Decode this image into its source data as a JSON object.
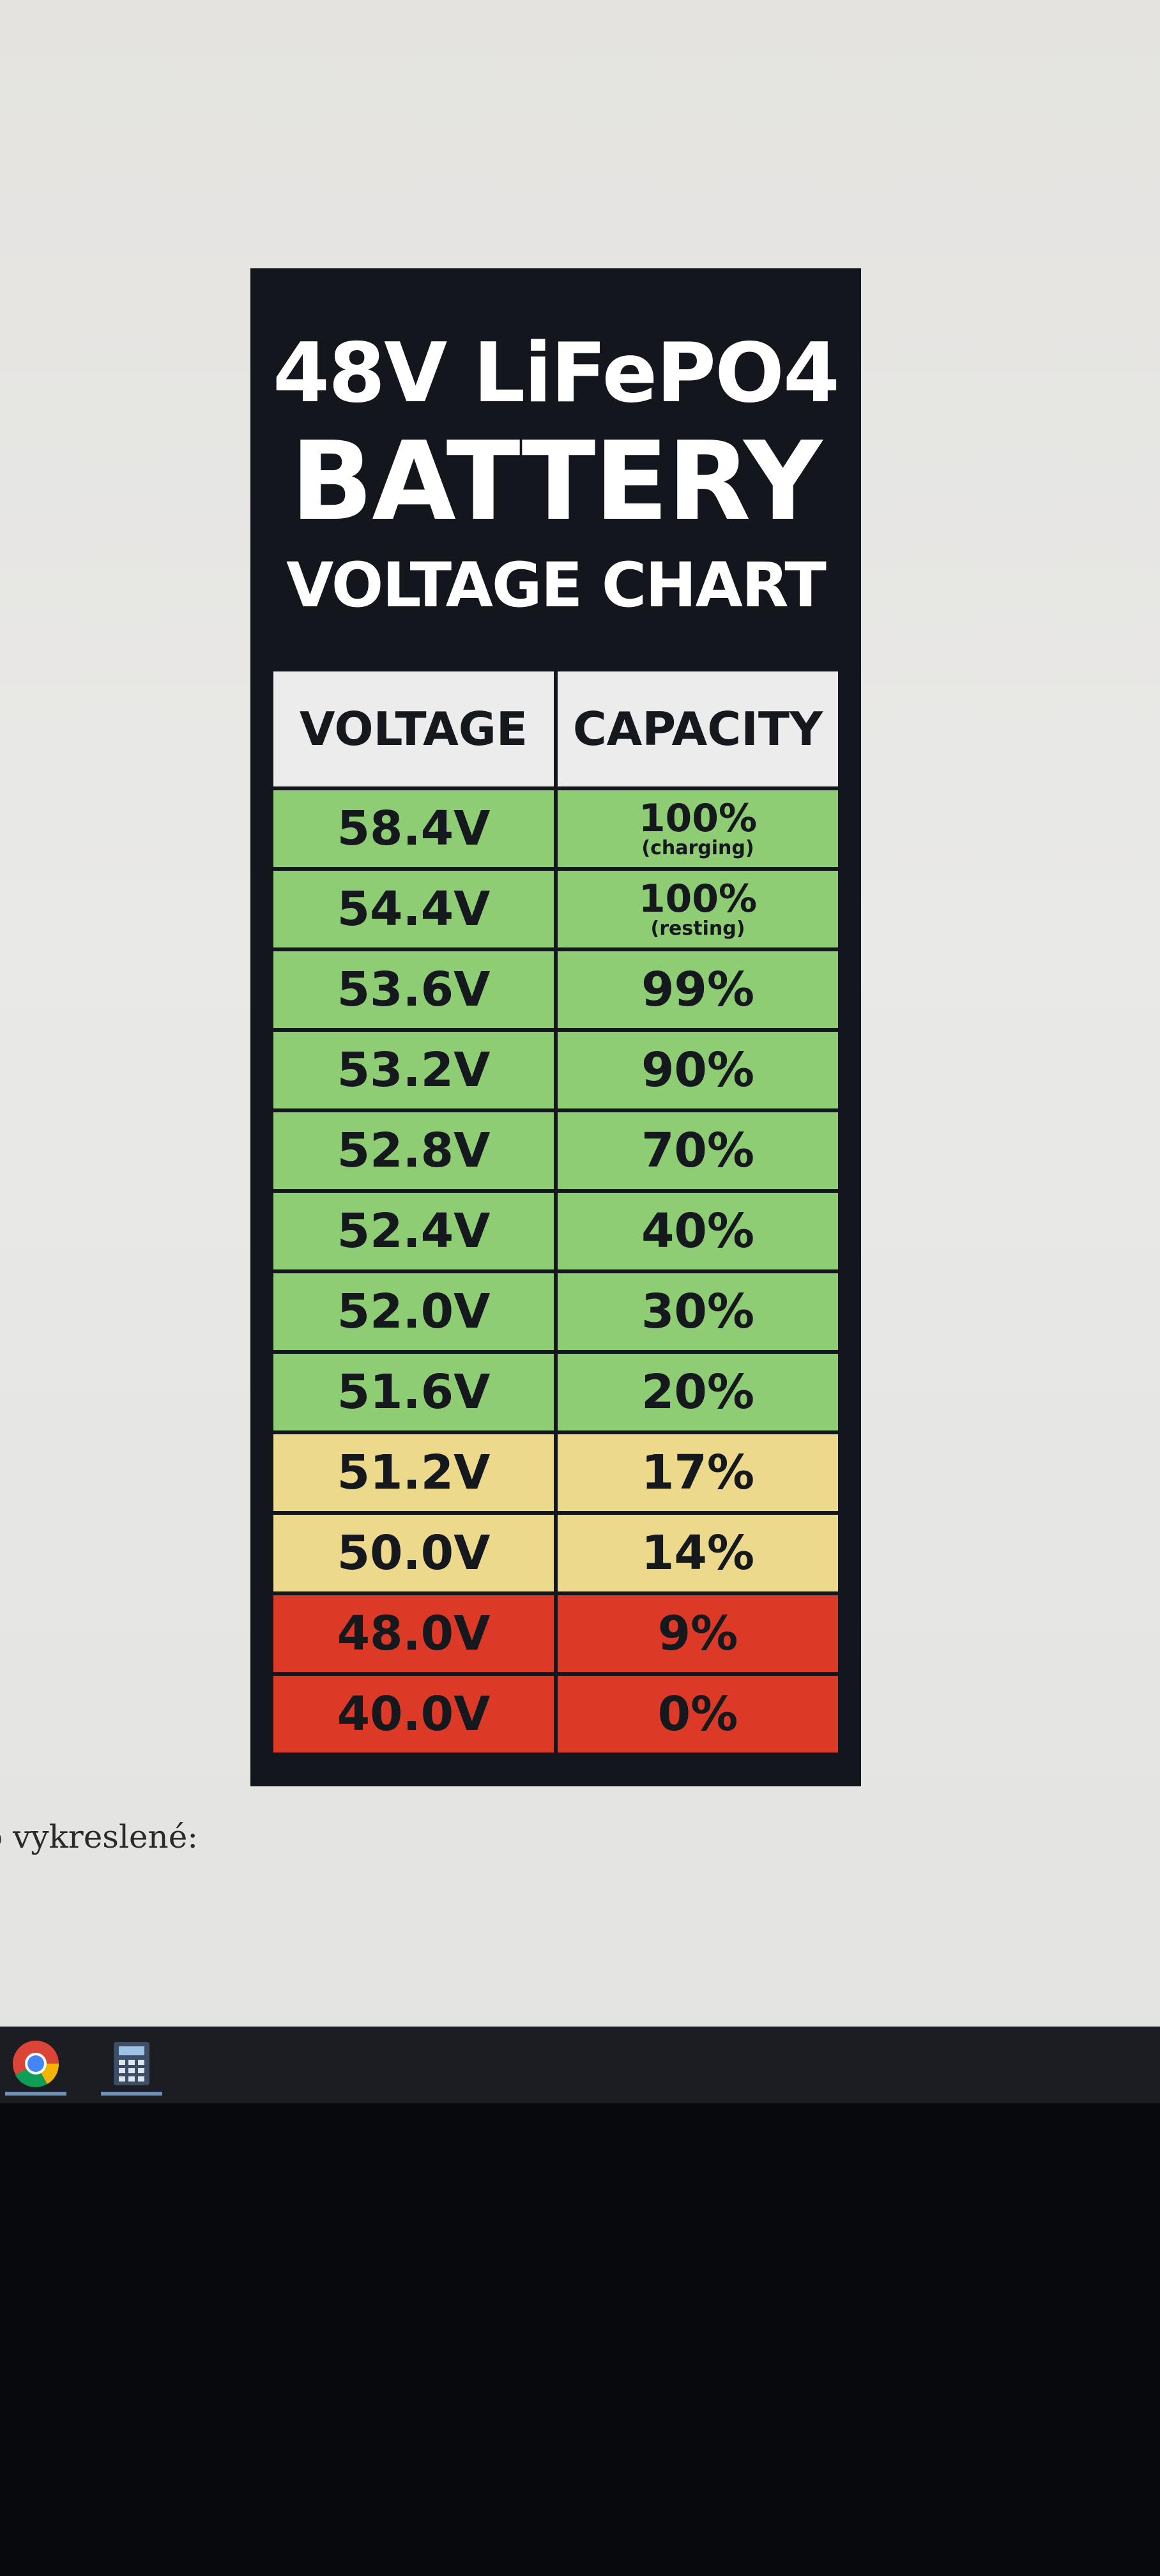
{
  "chart": {
    "title_line1": "48V LiFePO4",
    "title_line2": "BATTERY",
    "title_line3": "VOLTAGE CHART",
    "header_voltage": "VOLTAGE",
    "header_capacity": "CAPACITY"
  },
  "chart_data": {
    "type": "table",
    "columns": [
      "VOLTAGE",
      "CAPACITY"
    ],
    "rows": [
      {
        "voltage": "58.4V",
        "capacity": "100%",
        "note": "(charging)",
        "status": "green"
      },
      {
        "voltage": "54.4V",
        "capacity": "100%",
        "note": "(resting)",
        "status": "green"
      },
      {
        "voltage": "53.6V",
        "capacity": "99%",
        "note": "",
        "status": "green"
      },
      {
        "voltage": "53.2V",
        "capacity": "90%",
        "note": "",
        "status": "green"
      },
      {
        "voltage": "52.8V",
        "capacity": "70%",
        "note": "",
        "status": "green"
      },
      {
        "voltage": "52.4V",
        "capacity": "40%",
        "note": "",
        "status": "green"
      },
      {
        "voltage": "52.0V",
        "capacity": "30%",
        "note": "",
        "status": "green"
      },
      {
        "voltage": "51.6V",
        "capacity": "20%",
        "note": "",
        "status": "green"
      },
      {
        "voltage": "51.2V",
        "capacity": "17%",
        "note": "",
        "status": "yellow"
      },
      {
        "voltage": "50.0V",
        "capacity": "14%",
        "note": "",
        "status": "yellow"
      },
      {
        "voltage": "48.0V",
        "capacity": "9%",
        "note": "",
        "status": "red"
      },
      {
        "voltage": "40.0V",
        "capacity": "0%",
        "note": "",
        "status": "red"
      }
    ]
  },
  "colors": {
    "green": "#8fcd74",
    "yellow": "#ecd98c",
    "red": "#dc3a26",
    "header_bg": "#ececec",
    "card_bg": "#13161d"
  },
  "page": {
    "text_fragment": "o vykreslené:"
  },
  "taskbar": {
    "icons": [
      "chrome-icon",
      "calculator-icon"
    ]
  }
}
